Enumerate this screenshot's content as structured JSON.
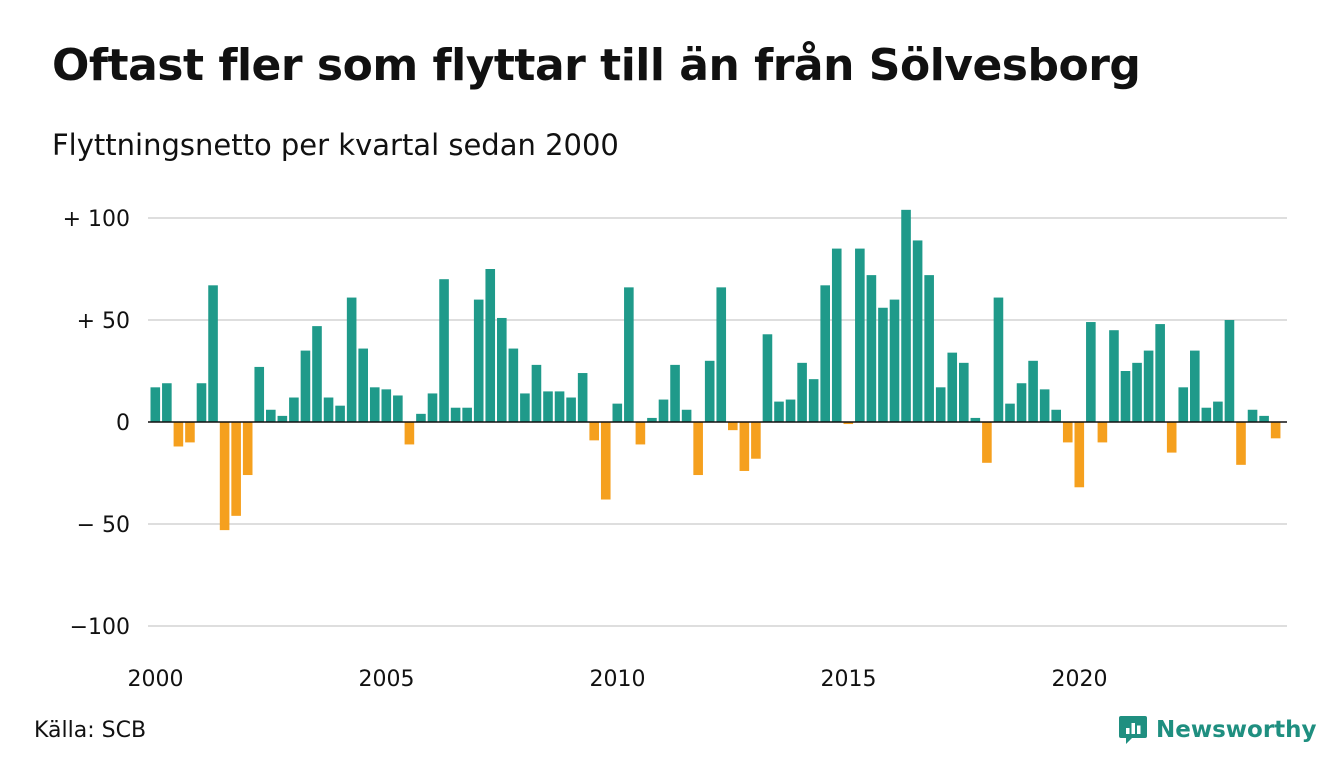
{
  "chart_data": {
    "type": "bar",
    "title": "Oftast fler som flyttar till än från Sölvesborg",
    "subtitle": "Flyttningsnetto per kvartal sedan 2000",
    "ylim": [
      -100,
      105
    ],
    "y_ticks": [
      {
        "value": 100,
        "label": "+ 100"
      },
      {
        "value": 50,
        "label": "+  50"
      },
      {
        "value": 0,
        "label": "0"
      },
      {
        "value": -50,
        "label": "− 50"
      },
      {
        "value": -100,
        "label": "−100"
      }
    ],
    "x_ticks": [
      "2000",
      "2005",
      "2010",
      "2015",
      "2020"
    ],
    "x_start_year": 2000,
    "grid": true,
    "colors": {
      "positive": "#1f9a8a",
      "negative": "#f5a01e",
      "grid": "#dedede",
      "zero_line": "#111111"
    },
    "values": [
      17,
      19,
      -12,
      -10,
      19,
      67,
      -53,
      -46,
      -26,
      27,
      6,
      3,
      12,
      35,
      47,
      12,
      8,
      61,
      36,
      17,
      16,
      13,
      -11,
      4,
      14,
      70,
      7,
      7,
      60,
      75,
      51,
      36,
      14,
      28,
      15,
      15,
      12,
      24,
      -9,
      -38,
      9,
      66,
      -11,
      2,
      11,
      28,
      6,
      -26,
      30,
      66,
      -4,
      -24,
      -18,
      43,
      10,
      11,
      29,
      21,
      67,
      85,
      -1,
      85,
      72,
      56,
      60,
      104,
      89,
      72,
      17,
      34,
      29,
      2,
      -20,
      61,
      9,
      19,
      30,
      16,
      6,
      -10,
      -32,
      49,
      -10,
      45,
      25,
      29,
      35,
      48,
      -15,
      17,
      35,
      7,
      10,
      50,
      -21,
      6,
      3,
      -8
    ]
  },
  "footer": {
    "source": "Källa: SCB",
    "brand": "Newsworthy"
  }
}
